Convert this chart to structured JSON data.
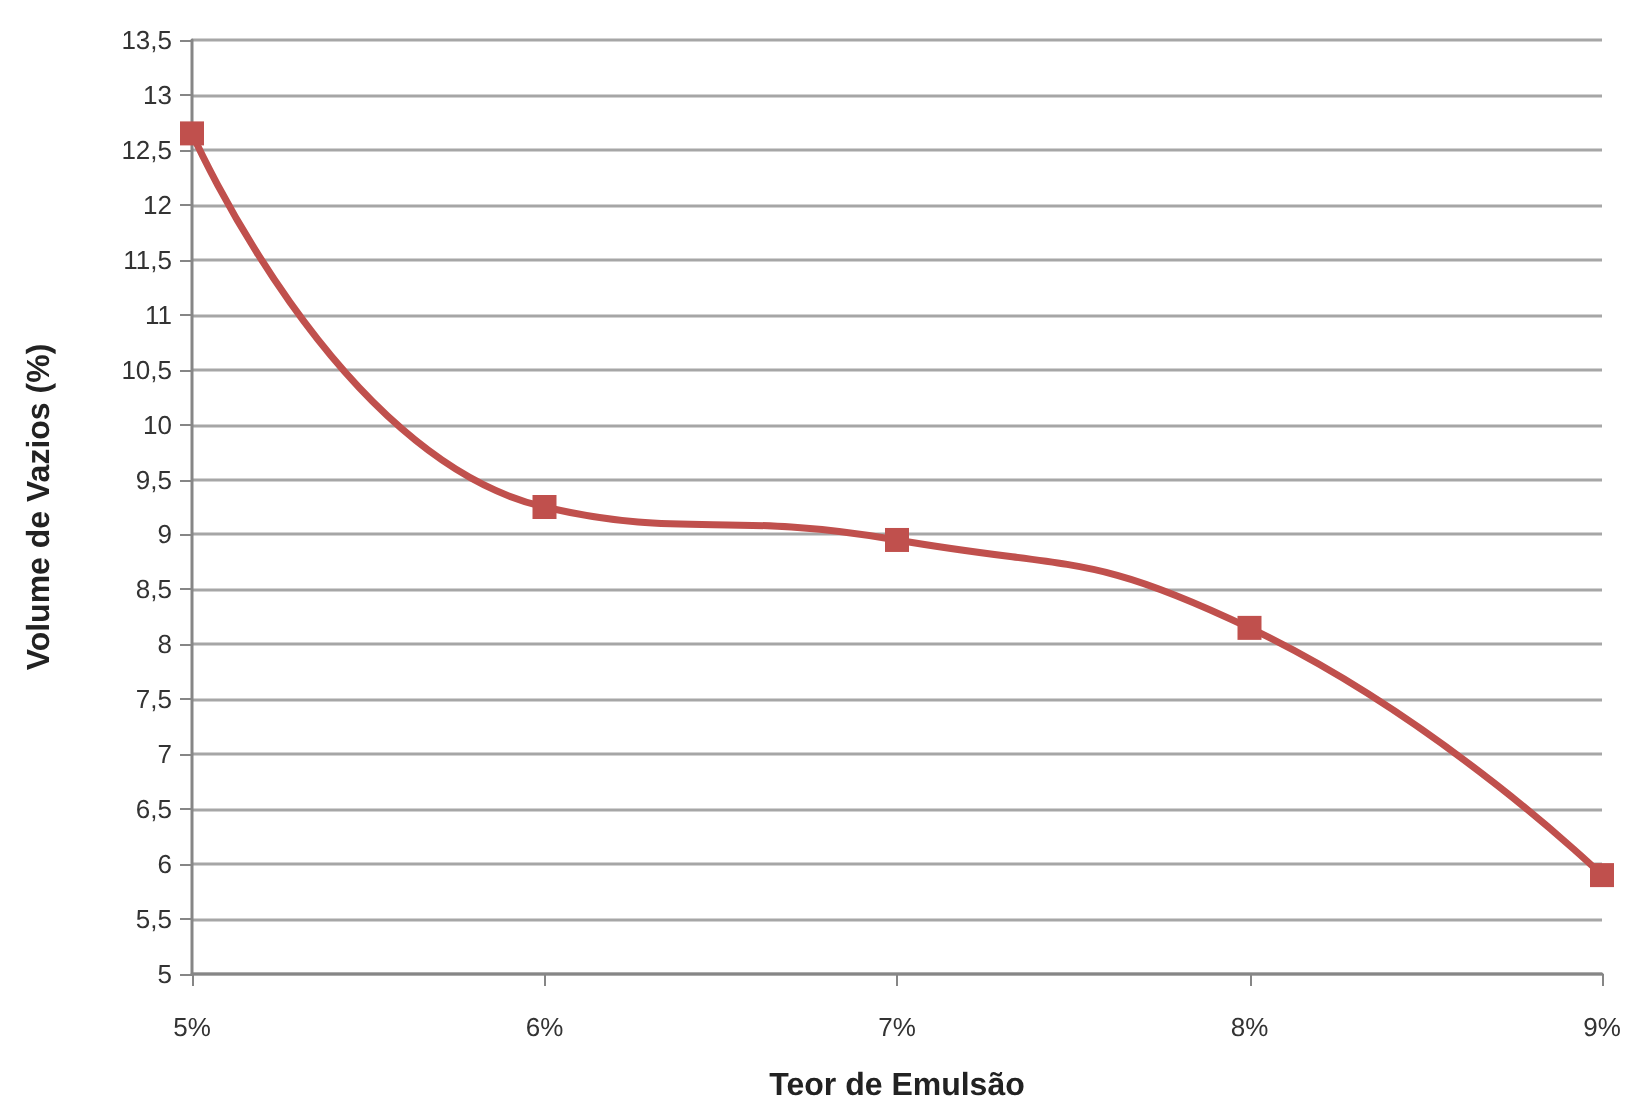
{
  "chart_data": {
    "type": "line",
    "xlabel": "Teor de Emulsão",
    "ylabel": "Volume de Vazios (%)",
    "categories": [
      "5%",
      "6%",
      "7%",
      "8%",
      "9%"
    ],
    "series": [
      {
        "color": "#c0504d",
        "values": [
          12.65,
          9.25,
          8.95,
          8.15,
          5.9
        ]
      }
    ],
    "ylim": [
      5,
      13.5
    ],
    "yticks": [
      5,
      {
        "value": 5.5,
        "label": "5,5"
      },
      6,
      {
        "value": 6.5,
        "label": "6,5"
      },
      7,
      {
        "value": 7.5,
        "label": "7,5"
      },
      8,
      {
        "value": 8.5,
        "label": "8,5"
      },
      9,
      {
        "value": 9.5,
        "label": "9,5"
      },
      10,
      {
        "value": 10.5,
        "label": "10,5"
      },
      11,
      {
        "value": 11.5,
        "label": "11,5"
      },
      12,
      {
        "value": 12.5,
        "label": "12,5"
      },
      13,
      {
        "value": 13.5,
        "label": "13,5"
      }
    ],
    "grid": "y",
    "marker": "square",
    "line_style": "solid"
  }
}
